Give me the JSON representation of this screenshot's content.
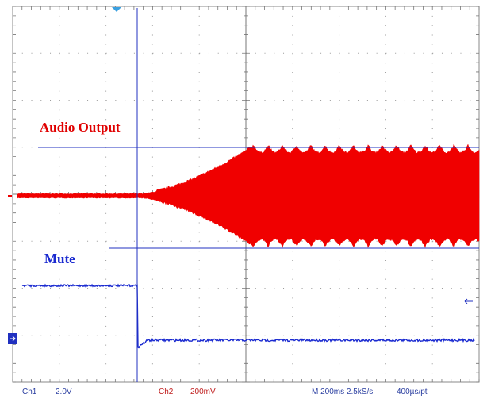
{
  "annotations": {
    "audio": "Audio Output",
    "mute": "Mute"
  },
  "status": {
    "ch1": "Ch1",
    "ch1_scale": "2.0V",
    "ch2": "Ch2",
    "ch2_scale": "200mV",
    "timebase": "M 200ms 2.5kS/s",
    "resolution": "400µs/pt"
  }
}
